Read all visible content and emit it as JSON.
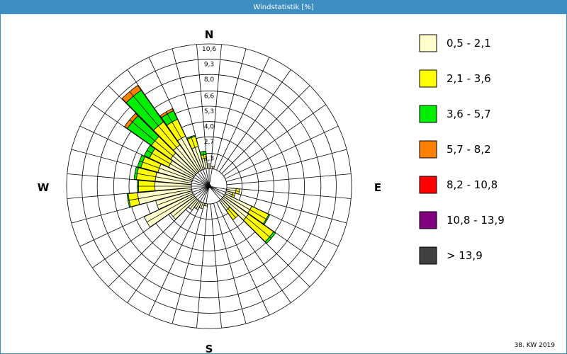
{
  "window": {
    "title": "Windstatistik [%]"
  },
  "footer": {
    "week": "38. KW 2019"
  },
  "chart_data": {
    "type": "wind-rose",
    "title": "Windstatistik [%]",
    "unit": "%",
    "directions": {
      "north": "N",
      "east": "E",
      "south": "S",
      "west": "W"
    },
    "sectors": 36,
    "radial_ticks": [
      "1,3",
      "2,7",
      "4,0",
      "5,3",
      "6,6",
      "8,0",
      "9,3",
      "10,6"
    ],
    "radial_max": 10.6,
    "legend": [
      {
        "label": "0,5 - 2,1",
        "color": "#ffffcc"
      },
      {
        "label": "2,1 - 3,6",
        "color": "#ffff00"
      },
      {
        "label": "3,6 - 5,7",
        "color": "#00ee00"
      },
      {
        "label": "5,7 - 8,2",
        "color": "#ff8000"
      },
      {
        "label": "8,2 - 10,8",
        "color": "#ff0000"
      },
      {
        "label": "10,8 - 13,9",
        "color": "#800080"
      },
      {
        "label": "> 13,9",
        "color": "#404040"
      }
    ],
    "series": [
      {
        "direction": 100,
        "values": [
          0.8,
          0.3,
          0,
          0,
          0,
          0,
          0
        ]
      },
      {
        "direction": 110,
        "values": [
          0.6,
          0.2,
          0,
          0,
          0,
          0,
          0
        ]
      },
      {
        "direction": 120,
        "values": [
          2.5,
          1.6,
          0.1,
          0,
          0,
          0,
          0
        ]
      },
      {
        "direction": 130,
        "values": [
          2.6,
          2.6,
          0.2,
          0,
          0,
          0,
          0
        ]
      },
      {
        "direction": 140,
        "values": [
          1.0,
          1.0,
          0,
          0,
          0,
          0,
          0
        ]
      },
      {
        "direction": 190,
        "values": [
          0.2,
          0,
          0,
          0,
          0,
          0,
          0
        ]
      },
      {
        "direction": 200,
        "values": [
          0.5,
          0,
          0,
          0,
          0,
          0,
          0
        ]
      },
      {
        "direction": 210,
        "values": [
          0.7,
          0,
          0,
          0,
          0,
          0,
          0
        ]
      },
      {
        "direction": 220,
        "values": [
          1.0,
          0,
          0,
          0,
          0,
          0,
          0
        ]
      },
      {
        "direction": 230,
        "values": [
          2.5,
          0,
          0,
          0,
          0,
          0,
          0
        ]
      },
      {
        "direction": 240,
        "values": [
          4.6,
          0,
          0,
          0,
          0,
          0,
          0
        ]
      },
      {
        "direction": 250,
        "values": [
          3.2,
          0,
          0,
          0,
          0,
          0,
          0
        ]
      },
      {
        "direction": 260,
        "values": [
          4.6,
          0.8,
          0.1,
          0,
          0,
          0,
          0
        ]
      },
      {
        "direction": 270,
        "values": [
          3.1,
          1.4,
          0.1,
          0,
          0,
          0,
          0
        ]
      },
      {
        "direction": 280,
        "values": [
          3.1,
          1.6,
          0.2,
          0,
          0,
          0,
          0
        ]
      },
      {
        "direction": 290,
        "values": [
          3.0,
          1.5,
          0.3,
          0,
          0,
          0,
          0
        ]
      },
      {
        "direction": 300,
        "values": [
          2.3,
          1.8,
          0.5,
          0,
          0,
          0,
          0
        ]
      },
      {
        "direction": 310,
        "values": [
          2.5,
          2.0,
          2.5,
          0.3,
          0,
          0,
          0
        ]
      },
      {
        "direction": 320,
        "values": [
          2.8,
          2.4,
          3.3,
          0.5,
          0,
          0,
          0
        ]
      },
      {
        "direction": 330,
        "values": [
          3.2,
          1.6,
          0.8,
          0.2,
          0,
          0,
          0
        ]
      },
      {
        "direction": 340,
        "values": [
          2.0,
          0.9,
          0.1,
          0,
          0,
          0,
          0
        ]
      },
      {
        "direction": 350,
        "values": [
          0.9,
          0.3,
          0.3,
          0,
          0,
          0,
          0
        ]
      },
      {
        "direction": 0,
        "values": [
          0.4,
          0,
          0,
          0,
          0,
          0,
          0
        ]
      },
      {
        "direction": 10,
        "values": [
          0.2,
          0,
          0,
          0,
          0,
          0,
          0
        ]
      }
    ]
  }
}
